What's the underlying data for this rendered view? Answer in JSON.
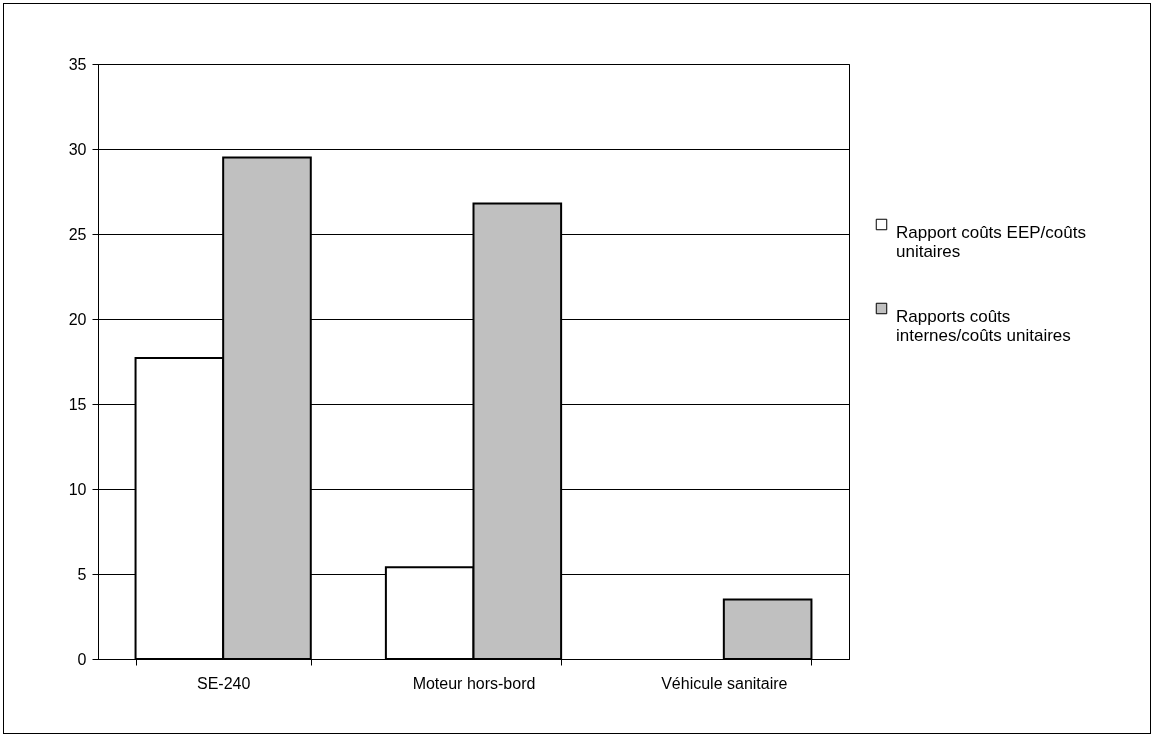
{
  "chart_data": {
    "type": "bar",
    "categories": [
      "SE-240",
      "Moteur hors-bord",
      "Véhicule sanitaire"
    ],
    "series": [
      {
        "name": "Rapport coûts EEP/coûts unitaires",
        "color": "#ffffff",
        "values": [
          17.7,
          5.4,
          null
        ]
      },
      {
        "name": "Rapports coûts internes/coûts unitaires",
        "color": "#c0c0c0",
        "values": [
          29.5,
          26.8,
          3.5
        ]
      }
    ],
    "ylim": [
      0,
      35
    ],
    "yticks": [
      0,
      5,
      10,
      15,
      20,
      25,
      30,
      35
    ],
    "grid": "y",
    "legend": "right"
  }
}
